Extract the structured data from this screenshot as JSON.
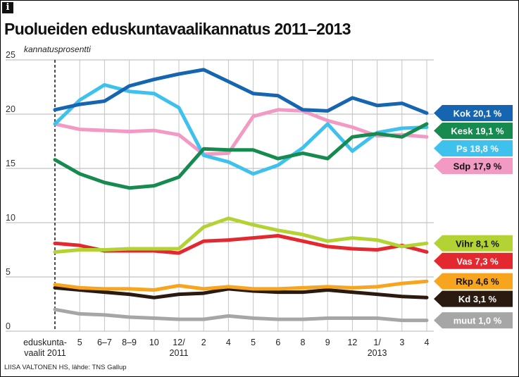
{
  "title": "Puolueiden eduskuntavaalikannatus 2011–2013",
  "credit": "LIISA VALTONEN HS, lähde: TNS Gallup",
  "icons": {
    "info": "info-icon"
  },
  "chart_data": {
    "type": "line",
    "title": "Puolueiden eduskuntavaalikannatus 2011–2013",
    "ylabel": "kannatusprosentti",
    "xlabel": "",
    "ylim": [
      0,
      25
    ],
    "yticks": [
      0,
      5,
      10,
      15,
      20,
      25
    ],
    "grid": true,
    "legend": "right",
    "categories": [
      "eduskunta-vaalit 2011",
      "5",
      "6–7",
      "8–9",
      "10",
      "12/2011",
      "2",
      "4",
      "5",
      "6",
      "8",
      "9",
      "12",
      "1/2013",
      "3",
      "4"
    ],
    "tick_labels": [
      {
        "line1": "eduskunta-",
        "line2": "vaalit 2011"
      },
      {
        "line1": "5",
        "line2": ""
      },
      {
        "line1": "6–7",
        "line2": ""
      },
      {
        "line1": "8–9",
        "line2": ""
      },
      {
        "line1": "10",
        "line2": ""
      },
      {
        "line1": "12/",
        "line2": "2011"
      },
      {
        "line1": "2",
        "line2": ""
      },
      {
        "line1": "4",
        "line2": ""
      },
      {
        "line1": "5",
        "line2": ""
      },
      {
        "line1": "6",
        "line2": ""
      },
      {
        "line1": "8",
        "line2": ""
      },
      {
        "line1": "9",
        "line2": ""
      },
      {
        "line1": "12",
        "line2": ""
      },
      {
        "line1": "1/",
        "line2": "2013"
      },
      {
        "line1": "3",
        "line2": ""
      },
      {
        "line1": "4",
        "line2": ""
      }
    ],
    "series": [
      {
        "name": "Kok",
        "label": "Kok 20,1 %",
        "color": "#1565b0",
        "label_color": "#ffffff",
        "values": [
          20.4,
          20.9,
          21.2,
          22.6,
          23.2,
          23.7,
          24.1,
          23.0,
          21.9,
          21.7,
          20.4,
          20.3,
          21.5,
          20.8,
          21.0,
          20.1
        ]
      },
      {
        "name": "Kesk",
        "label": "Kesk 19,1 %",
        "color": "#178a4f",
        "label_color": "#ffffff",
        "values": [
          15.8,
          14.5,
          13.7,
          13.2,
          13.4,
          14.2,
          16.8,
          16.7,
          16.7,
          15.9,
          16.4,
          15.9,
          17.9,
          18.2,
          17.9,
          19.1
        ]
      },
      {
        "name": "Ps",
        "label": "Ps 18,8 %",
        "color": "#3fc1ee",
        "label_color": "#ffffff",
        "values": [
          19.1,
          21.3,
          22.7,
          22.1,
          21.9,
          20.6,
          16.2,
          15.6,
          14.5,
          15.3,
          16.9,
          19.1,
          16.6,
          18.3,
          18.7,
          18.8
        ]
      },
      {
        "name": "Sdp",
        "label": "Sdp 17,9 %",
        "color": "#f29ac4",
        "label_color": "#111111",
        "values": [
          19.1,
          18.6,
          18.5,
          18.4,
          18.5,
          18.1,
          16.3,
          16.4,
          19.8,
          20.4,
          20.3,
          19.4,
          18.8,
          18.0,
          18.1,
          17.9
        ]
      },
      {
        "name": "Vihr",
        "label": "Vihr 8,1 %",
        "color": "#b3d334",
        "label_color": "#111111",
        "values": [
          7.3,
          7.5,
          7.5,
          7.6,
          7.6,
          7.6,
          9.6,
          10.4,
          9.8,
          9.3,
          8.9,
          8.3,
          8.6,
          8.4,
          7.8,
          8.1
        ]
      },
      {
        "name": "Vas",
        "label": "Vas 7,3 %",
        "color": "#e4282f",
        "label_color": "#ffffff",
        "values": [
          8.1,
          7.9,
          7.4,
          7.4,
          7.4,
          7.2,
          8.3,
          8.4,
          8.6,
          8.8,
          8.3,
          7.8,
          7.6,
          7.5,
          7.9,
          7.3
        ]
      },
      {
        "name": "Rkp",
        "label": "Rkp 4,6 %",
        "color": "#f7a51e",
        "label_color": "#111111",
        "values": [
          4.3,
          4.0,
          3.9,
          3.9,
          3.8,
          4.2,
          3.9,
          4.1,
          3.9,
          3.9,
          4.0,
          4.1,
          4.0,
          4.1,
          4.4,
          4.6
        ]
      },
      {
        "name": "Kd",
        "label": "Kd 3,1 %",
        "color": "#2a1a10",
        "label_color": "#ffffff",
        "values": [
          4.0,
          3.8,
          3.6,
          3.4,
          3.1,
          3.4,
          3.5,
          3.9,
          3.7,
          3.6,
          3.6,
          3.8,
          3.6,
          3.4,
          3.2,
          3.1
        ]
      },
      {
        "name": "muut",
        "label": "muut 1,0 %",
        "color": "#a6a6a6",
        "label_color": "#ffffff",
        "values": [
          2.0,
          1.6,
          1.5,
          1.3,
          1.2,
          1.1,
          1.1,
          1.4,
          1.2,
          1.1,
          1.1,
          1.2,
          1.2,
          1.2,
          1.0,
          1.0
        ]
      }
    ]
  }
}
